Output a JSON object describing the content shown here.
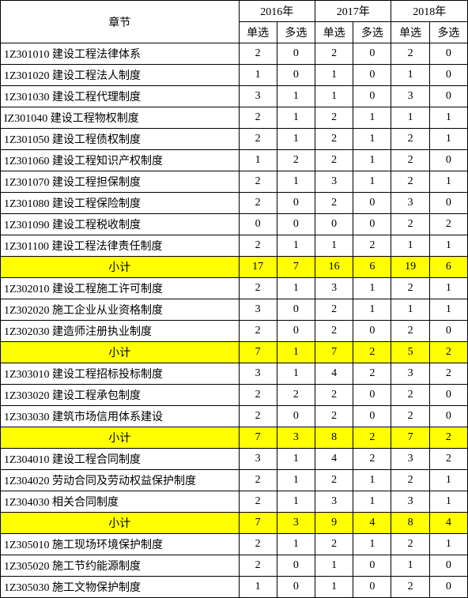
{
  "header": {
    "chapter_label": "章节",
    "years": [
      "2016年",
      "2017年",
      "2018年"
    ],
    "subs": [
      "单选",
      "多选"
    ]
  },
  "colors": {
    "subtotal_bg": "#ffff00",
    "border": "#000000",
    "bg": "#ffffff"
  },
  "rows": [
    {
      "chapter": "1Z301010   建设工程法律体系",
      "vals": [
        2,
        0,
        2,
        0,
        2,
        0
      ],
      "subtotal": false
    },
    {
      "chapter": "1Z301020   建设工程法人制度",
      "vals": [
        1,
        0,
        1,
        0,
        1,
        0
      ],
      "subtotal": false
    },
    {
      "chapter": "1Z301030   建设工程代理制度",
      "vals": [
        3,
        1,
        1,
        0,
        3,
        0
      ],
      "subtotal": false
    },
    {
      "chapter": "IZ301040   建设工程物权制度",
      "vals": [
        2,
        1,
        2,
        1,
        1,
        1
      ],
      "subtotal": false
    },
    {
      "chapter": "1Z301050   建设工程债权制度",
      "vals": [
        2,
        1,
        2,
        1,
        2,
        1
      ],
      "subtotal": false
    },
    {
      "chapter": "1Z301060   建设工程知识产权制度",
      "vals": [
        1,
        2,
        2,
        1,
        2,
        0
      ],
      "subtotal": false
    },
    {
      "chapter": "1Z301070   建设工程担保制度",
      "vals": [
        2,
        1,
        3,
        1,
        2,
        1
      ],
      "subtotal": false
    },
    {
      "chapter": "1Z301080   建设工程保险制度",
      "vals": [
        2,
        0,
        2,
        0,
        3,
        0
      ],
      "subtotal": false
    },
    {
      "chapter": "1Z301090   建设工程税收制度",
      "vals": [
        0,
        0,
        0,
        0,
        2,
        2
      ],
      "subtotal": false
    },
    {
      "chapter": "1Z301100   建设工程法律责任制度",
      "vals": [
        2,
        1,
        1,
        2,
        1,
        1
      ],
      "subtotal": false
    },
    {
      "chapter": "小计",
      "vals": [
        17,
        7,
        16,
        6,
        19,
        6
      ],
      "subtotal": true
    },
    {
      "chapter": "1Z302010   建设工程施工许可制度",
      "vals": [
        2,
        1,
        3,
        1,
        2,
        1
      ],
      "subtotal": false
    },
    {
      "chapter": "1Z302020   施工企业从业资格制度",
      "vals": [
        3,
        0,
        2,
        1,
        1,
        1
      ],
      "subtotal": false
    },
    {
      "chapter": "1Z302030   建造师注册执业制度",
      "vals": [
        2,
        0,
        2,
        0,
        2,
        0
      ],
      "subtotal": false
    },
    {
      "chapter": "小计",
      "vals": [
        7,
        1,
        7,
        2,
        5,
        2
      ],
      "subtotal": true
    },
    {
      "chapter": "1Z303010   建设工程招标投标制度",
      "vals": [
        3,
        1,
        4,
        2,
        3,
        2
      ],
      "subtotal": false
    },
    {
      "chapter": "1Z303020   建设工程承包制度",
      "vals": [
        2,
        2,
        2,
        0,
        2,
        0
      ],
      "subtotal": false
    },
    {
      "chapter": "1Z303030   建筑市场信用体系建设",
      "vals": [
        2,
        0,
        2,
        0,
        2,
        0
      ],
      "subtotal": false
    },
    {
      "chapter": "小计",
      "vals": [
        7,
        3,
        8,
        2,
        7,
        2
      ],
      "subtotal": true
    },
    {
      "chapter": "1Z304010   建设工程合同制度",
      "vals": [
        3,
        1,
        4,
        2,
        3,
        2
      ],
      "subtotal": false
    },
    {
      "chapter": "1Z304020   劳动合同及劳动权益保护制度",
      "vals": [
        2,
        1,
        2,
        1,
        2,
        1
      ],
      "subtotal": false
    },
    {
      "chapter": "1Z304030   相关合同制度",
      "vals": [
        2,
        1,
        3,
        1,
        3,
        1
      ],
      "subtotal": false
    },
    {
      "chapter": "小计",
      "vals": [
        7,
        3,
        9,
        4,
        8,
        4
      ],
      "subtotal": true
    },
    {
      "chapter": "1Z305010   施工现场环境保护制度",
      "vals": [
        2,
        1,
        2,
        1,
        2,
        1
      ],
      "subtotal": false
    },
    {
      "chapter": "1Z305020   施工节约能源制度",
      "vals": [
        2,
        0,
        1,
        0,
        1,
        0
      ],
      "subtotal": false
    },
    {
      "chapter": "1Z305030   施工文物保护制度",
      "vals": [
        1,
        0,
        1,
        0,
        2,
        0
      ],
      "subtotal": false
    }
  ]
}
